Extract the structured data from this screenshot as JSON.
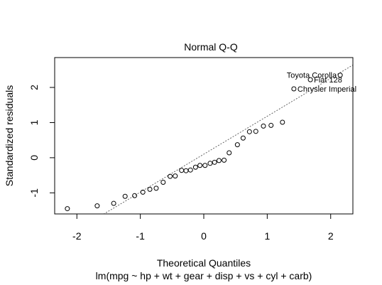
{
  "chart_data": {
    "type": "scatter",
    "title": "Normal Q-Q",
    "xlabel": "Theoretical Quantiles",
    "subtitle": "lm(mpg ~ hp + wt + gear + disp + vs + cyl + carb)",
    "ylabel": "Standardized residuals",
    "xlim": [
      -2.35,
      2.35
    ],
    "ylim": [
      -1.6,
      2.85
    ],
    "xticks": [
      -2,
      -1,
      0,
      1,
      2
    ],
    "xtick_labels": [
      "-2",
      "-1",
      "0",
      "1",
      "2"
    ],
    "yticks": [
      -1,
      0,
      1,
      2
    ],
    "ytick_labels": [
      "-1",
      "0",
      "1",
      "2"
    ],
    "reference_line": {
      "style": "dotted",
      "intercept": 0.1,
      "slope": 1.08
    },
    "points": [
      {
        "x": -2.15,
        "y": -1.45
      },
      {
        "x": -1.68,
        "y": -1.37
      },
      {
        "x": -1.42,
        "y": -1.3
      },
      {
        "x": -1.24,
        "y": -1.1
      },
      {
        "x": -1.09,
        "y": -1.08
      },
      {
        "x": -0.96,
        "y": -0.98
      },
      {
        "x": -0.85,
        "y": -0.9
      },
      {
        "x": -0.75,
        "y": -0.87
      },
      {
        "x": -0.64,
        "y": -0.7
      },
      {
        "x": -0.53,
        "y": -0.53
      },
      {
        "x": -0.45,
        "y": -0.52
      },
      {
        "x": -0.35,
        "y": -0.36
      },
      {
        "x": -0.28,
        "y": -0.37
      },
      {
        "x": -0.21,
        "y": -0.35
      },
      {
        "x": -0.13,
        "y": -0.27
      },
      {
        "x": -0.06,
        "y": -0.22
      },
      {
        "x": 0.02,
        "y": -0.22
      },
      {
        "x": 0.1,
        "y": -0.16
      },
      {
        "x": 0.17,
        "y": -0.13
      },
      {
        "x": 0.24,
        "y": -0.08
      },
      {
        "x": 0.32,
        "y": -0.07
      },
      {
        "x": 0.4,
        "y": 0.14
      },
      {
        "x": 0.53,
        "y": 0.37
      },
      {
        "x": 0.62,
        "y": 0.56
      },
      {
        "x": 0.72,
        "y": 0.74
      },
      {
        "x": 0.82,
        "y": 0.75
      },
      {
        "x": 0.94,
        "y": 0.9
      },
      {
        "x": 1.06,
        "y": 0.92
      },
      {
        "x": 1.24,
        "y": 1.01
      },
      {
        "x": 1.42,
        "y": 1.96,
        "label": "Chrysler Imperial",
        "label_side": "right"
      },
      {
        "x": 1.68,
        "y": 2.22,
        "label": "Fiat 128",
        "label_side": "right"
      },
      {
        "x": 2.15,
        "y": 2.35,
        "label": "Toyota Corolla",
        "label_side": "left"
      }
    ]
  }
}
